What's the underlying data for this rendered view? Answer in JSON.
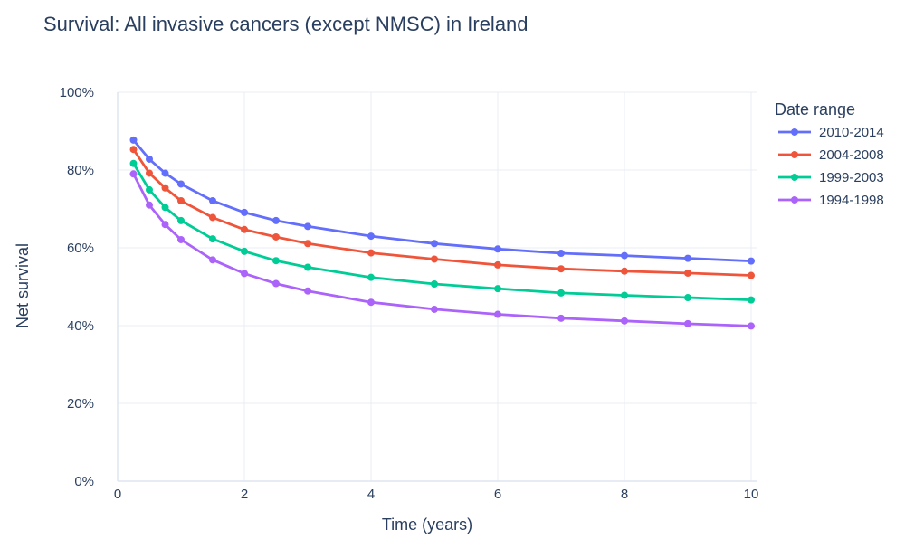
{
  "chart_data": {
    "type": "line",
    "title": "Survival: All invasive cancers (except NMSC) in Ireland",
    "xlabel": "Time (years)",
    "ylabel": "Net survival",
    "xlim": [
      0,
      10
    ],
    "ylim": [
      0,
      100
    ],
    "x_ticks": [
      0,
      2,
      4,
      6,
      8,
      10
    ],
    "y_ticks": [
      0,
      20,
      40,
      60,
      80,
      100
    ],
    "y_tick_labels": [
      "0%",
      "20%",
      "40%",
      "60%",
      "80%",
      "100%"
    ],
    "grid": true,
    "legend_title": "Date range",
    "legend_position": "right",
    "x": [
      0.25,
      0.5,
      0.75,
      1,
      1.5,
      2,
      2.5,
      3,
      4,
      5,
      6,
      7,
      8,
      9,
      10
    ],
    "series": [
      {
        "name": "2010-2014",
        "color": "#636efa",
        "values": [
          87.7,
          82.8,
          79.2,
          76.4,
          72.1,
          69.1,
          67.0,
          65.5,
          63.0,
          61.1,
          59.7,
          58.6,
          58.0,
          57.3,
          56.6
        ]
      },
      {
        "name": "2004-2008",
        "color": "#ef553b",
        "values": [
          85.3,
          79.2,
          75.4,
          72.1,
          67.8,
          64.7,
          62.8,
          61.1,
          58.7,
          57.1,
          55.6,
          54.6,
          54.0,
          53.5,
          52.9
        ]
      },
      {
        "name": "1999-2003",
        "color": "#00cc96",
        "values": [
          81.7,
          74.9,
          70.4,
          67.0,
          62.3,
          59.1,
          56.7,
          55.0,
          52.4,
          50.7,
          49.5,
          48.4,
          47.8,
          47.2,
          46.6
        ]
      },
      {
        "name": "1994-1998",
        "color": "#ab63fa",
        "values": [
          79.0,
          71.0,
          66.0,
          62.1,
          56.9,
          53.4,
          50.8,
          48.9,
          46.0,
          44.2,
          42.9,
          41.9,
          41.2,
          40.5,
          39.9
        ]
      }
    ]
  }
}
